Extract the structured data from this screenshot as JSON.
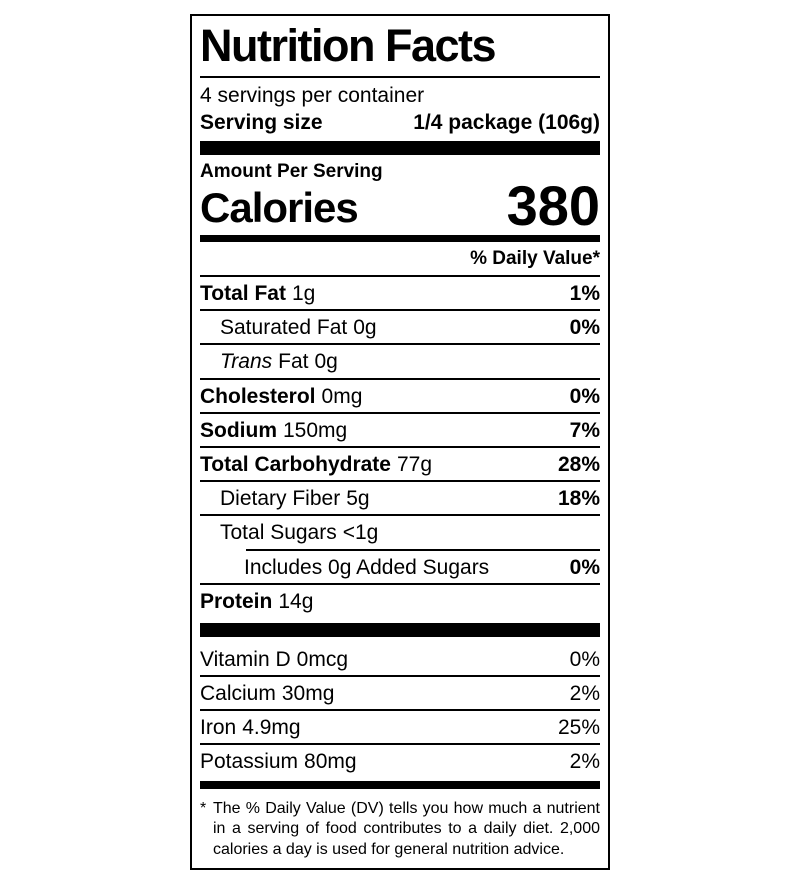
{
  "label": {
    "title": "Nutrition Facts",
    "servings_per_container": "4 servings per container",
    "serving_size": {
      "label": "Serving size",
      "value": "1/4 package (106g)"
    },
    "amount_per_serving": "Amount Per Serving",
    "calories": {
      "label": "Calories",
      "value": "380"
    },
    "daily_value_header": "% Daily Value*",
    "rows": [
      {
        "name": "Total Fat",
        "amount": "1g",
        "dv": "1%"
      },
      {
        "name": "Saturated Fat",
        "amount": "0g",
        "dv": "0%"
      },
      {
        "name_italic": "Trans",
        "name": "Fat",
        "amount": "0g",
        "dv": ""
      },
      {
        "name": "Cholesterol",
        "amount": "0mg",
        "dv": "0%"
      },
      {
        "name": "Sodium",
        "amount": "150mg",
        "dv": "7%"
      },
      {
        "name": "Total Carbohydrate",
        "amount": "77g",
        "dv": "28%"
      },
      {
        "name": "Dietary Fiber",
        "amount": "5g",
        "dv": "18%"
      },
      {
        "name": "Total Sugars",
        "amount": "<1g",
        "dv": ""
      },
      {
        "name": "Includes 0g Added Sugars",
        "amount": "",
        "dv": "0%"
      },
      {
        "name": "Protein",
        "amount": "14g",
        "dv": ""
      }
    ],
    "vitamins": [
      {
        "name": "Vitamin D",
        "amount": "0mcg",
        "dv": "0%"
      },
      {
        "name": "Calcium",
        "amount": "30mg",
        "dv": "2%"
      },
      {
        "name": "Iron",
        "amount": "4.9mg",
        "dv": "25%"
      },
      {
        "name": "Potassium",
        "amount": "80mg",
        "dv": "2%"
      }
    ],
    "footnote": {
      "marker": "*",
      "text": "The % Daily Value (DV) tells you how much a nutrient in a serving of food contributes to a daily diet. 2,000 calories a day is used for general nutrition advice."
    },
    "colors": {
      "ink": "#000000",
      "paper": "#ffffff"
    }
  }
}
